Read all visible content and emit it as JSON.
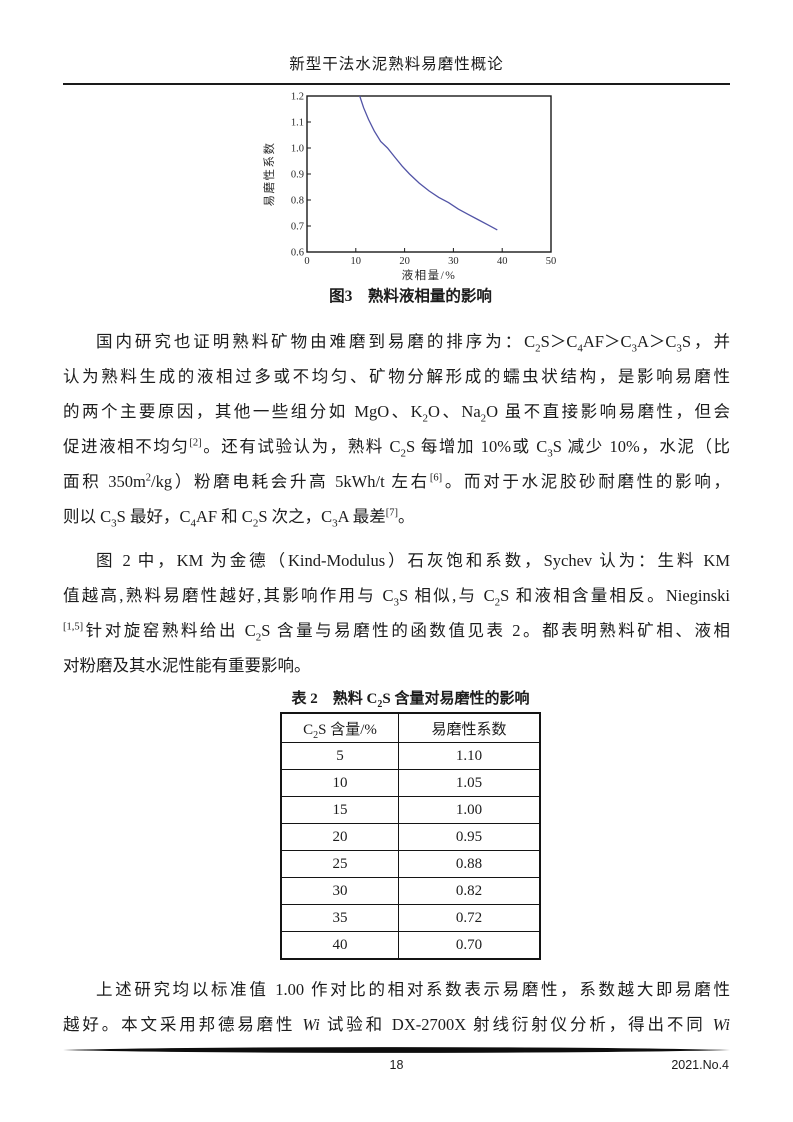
{
  "header": {
    "title": "新型干法水泥熟料易磨性概论"
  },
  "figure": {
    "caption": "图3　熟料液相量的影响"
  },
  "chart_data": {
    "type": "line",
    "title": "图3 熟料液相量的影响",
    "xlabel": "液相量/%",
    "ylabel": "易磨性系数",
    "xlim": [
      0,
      50
    ],
    "ylim": [
      0.6,
      1.2
    ],
    "xticks": [
      "0",
      "10",
      "20",
      "30",
      "40",
      "50"
    ],
    "yticks": [
      "0.6",
      "0.7",
      "0.8",
      "0.9",
      "1.0",
      "1.1",
      "1.2"
    ],
    "grid": false,
    "legend": false,
    "line_color": "#5254a6",
    "series": [
      {
        "name": "易磨性系数",
        "points": [
          [
            10.8,
            1.2
          ],
          [
            11.6,
            1.155
          ],
          [
            12.6,
            1.11
          ],
          [
            13.8,
            1.065
          ],
          [
            15.1,
            1.025
          ],
          [
            16.5,
            1.0
          ],
          [
            18,
            0.965
          ],
          [
            19.5,
            0.93
          ],
          [
            21,
            0.9
          ],
          [
            23,
            0.865
          ],
          [
            25,
            0.835
          ],
          [
            27,
            0.81
          ],
          [
            29,
            0.79
          ],
          [
            31,
            0.765
          ],
          [
            33,
            0.745
          ],
          [
            35,
            0.725
          ],
          [
            37,
            0.705
          ],
          [
            39,
            0.685
          ]
        ]
      }
    ]
  },
  "body": {
    "para1": {
      "justify_last": false,
      "lines": [
        "国内研究也证明熟料矿物由难磨到易磨的排序为：C<sub>2</sub>S＞C<sub>4</sub>AF＞C<sub>3</sub>A＞C<sub>3</sub>S，并",
        "认为熟料生成的液相过多或不均匀、矿物分解形成的蠕虫状结构，是影响易磨性",
        "的两个主要原因，其他一些组分如 MgO、K<sub>2</sub>O、Na<sub>2</sub>O 虽不直接影响易磨性，但会",
        "促进液相不均匀<sup>[2]</sup>。还有试验认为，熟料 C<sub>2</sub>S 每增加 10%或 C<sub>3</sub>S 减少 10%，水泥（比",
        "面积 350m<sup>2</sup>/kg）粉磨电耗会升高 5kWh/t 左右<sup>[6]</sup>。而对于水泥胶砂耐磨性的影响，",
        "则以 C<sub>3</sub>S 最好，C<sub>4</sub>AF 和 C<sub>2</sub>S 次之，C<sub>3</sub>A 最差<sup>[7]</sup>。"
      ]
    },
    "para2": {
      "justify_last": false,
      "lines": [
        "图 2 中，KM 为金德（Kind-Modulus）石灰饱和系数，Sychev 认为：生料 KM",
        "值越高,熟料易磨性越好,其影响作用与 C<sub>3</sub>S 相似,与 C<sub>2</sub>S 和液相含量相反。Nieginski",
        "<sup>[1,5]</sup>针对旋窑熟料给出 C<sub>2</sub>S 含量与易磨性的函数值见表 2。都表明熟料矿相、液相",
        "对粉磨及其水泥性能有重要影响。"
      ]
    },
    "para3": {
      "justify_last": true,
      "lines": [
        "上述研究均以标准值 1.00 作对比的相对系数表示易磨性，系数越大即易磨性",
        "越好。本文采用邦德易磨性 <i>Wi</i> 试验和 DX-2700X 射线衍射仪分析，得出不同 <i>Wi</i>"
      ]
    }
  },
  "table": {
    "title": "表 2　熟料 C<sub>2</sub>S 含量对易磨性的影响",
    "headers": [
      "C<sub>2</sub>S 含量/%",
      "易磨性系数"
    ],
    "rows": [
      [
        "5",
        "1.10"
      ],
      [
        "10",
        "1.05"
      ],
      [
        "15",
        "1.00"
      ],
      [
        "20",
        "0.95"
      ],
      [
        "25",
        "0.88"
      ],
      [
        "30",
        "0.82"
      ],
      [
        "35",
        "0.72"
      ],
      [
        "40",
        "0.70"
      ]
    ]
  },
  "footer": {
    "page_number": "18",
    "issue": "2021.No.4"
  }
}
